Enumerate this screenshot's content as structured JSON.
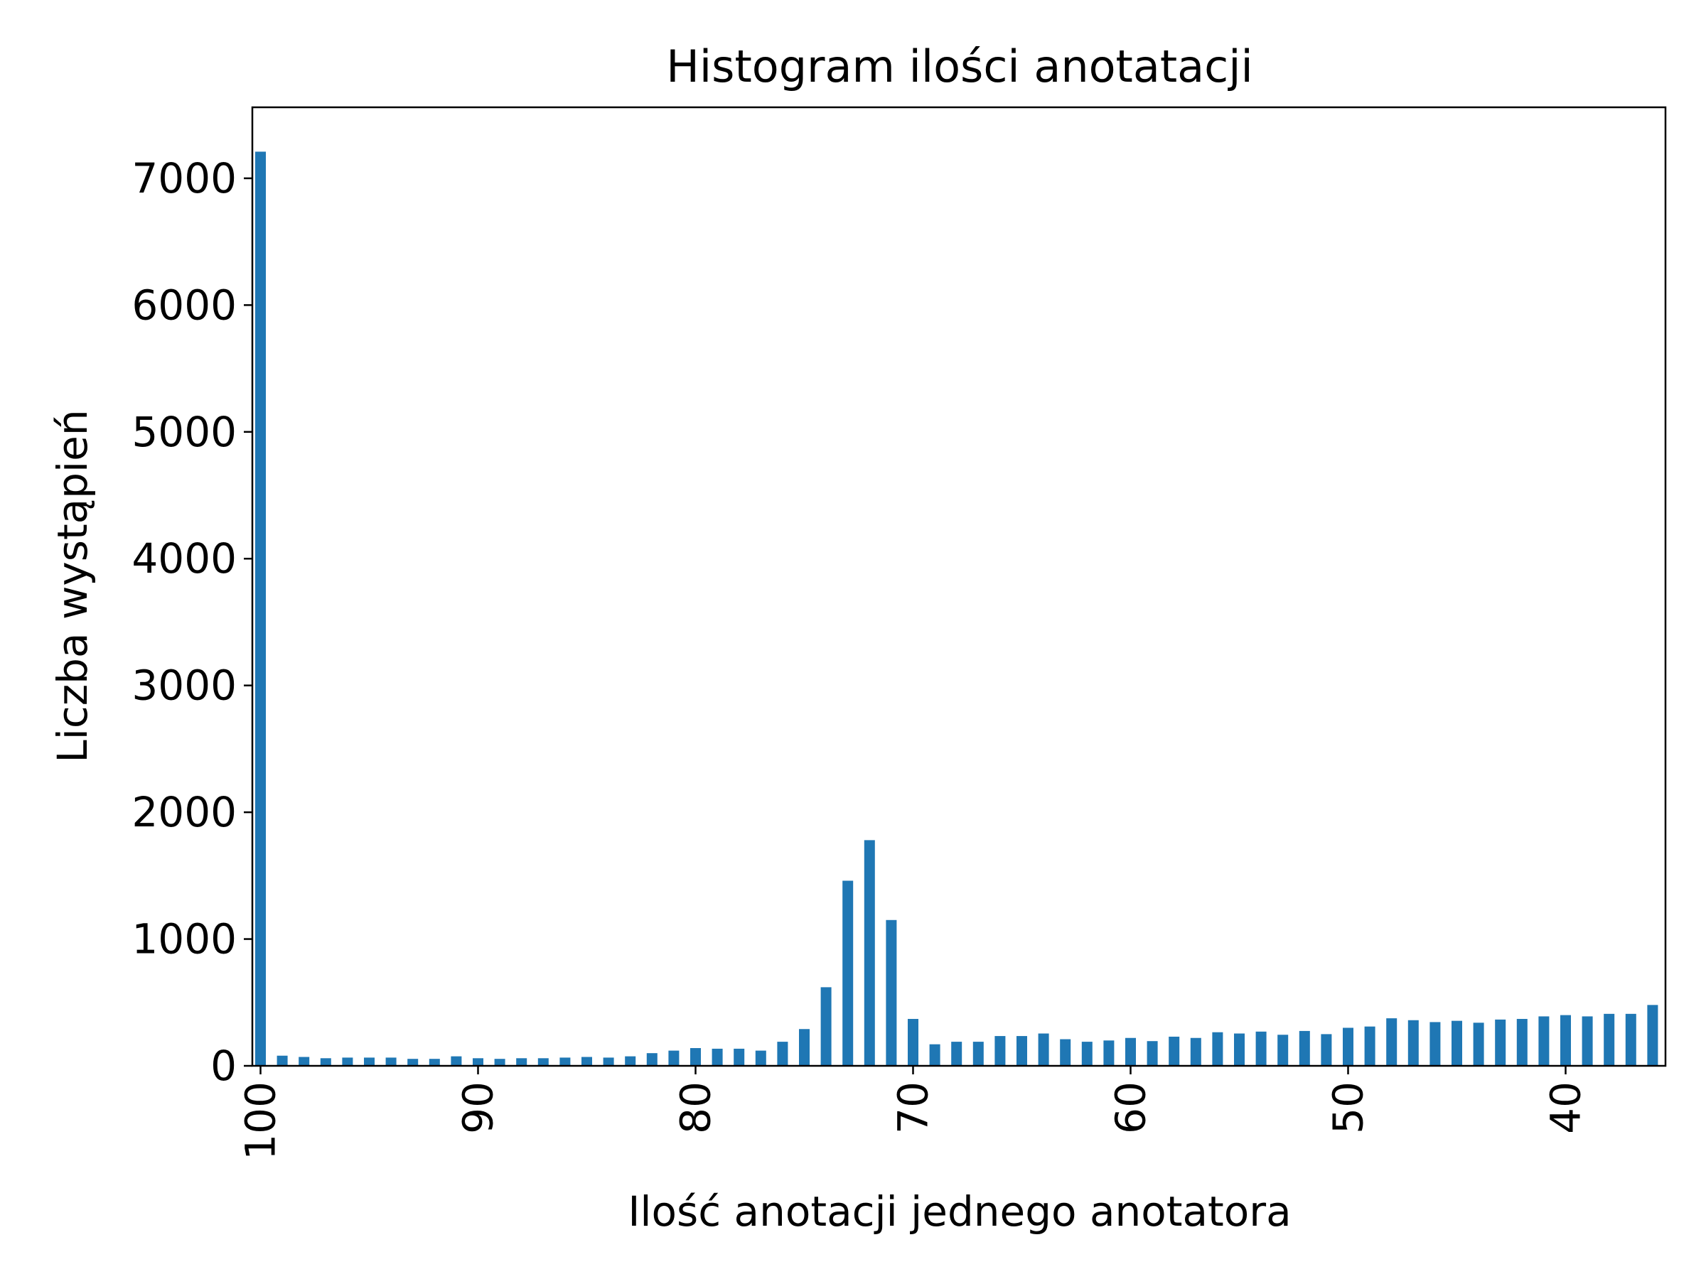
{
  "chart_data": {
    "type": "bar",
    "title": "Histogram ilości anotatacji",
    "xlabel": "Ilość anotacji jednego anotatora",
    "ylabel": "Liczba wystąpień",
    "x_order": "descending",
    "categories": [
      100,
      99,
      98,
      97,
      96,
      95,
      94,
      93,
      92,
      91,
      90,
      89,
      88,
      87,
      86,
      85,
      84,
      83,
      82,
      81,
      80,
      79,
      78,
      77,
      76,
      75,
      74,
      73,
      72,
      71,
      70,
      69,
      68,
      67,
      66,
      65,
      64,
      63,
      62,
      61,
      60,
      59,
      58,
      57,
      56,
      55,
      54,
      53,
      52,
      51,
      50,
      49,
      48,
      47,
      46,
      45,
      44,
      43,
      42,
      41,
      40,
      39,
      38,
      37,
      36
    ],
    "values": [
      7210,
      80,
      70,
      60,
      65,
      65,
      65,
      55,
      55,
      75,
      60,
      55,
      60,
      60,
      65,
      70,
      65,
      75,
      100,
      120,
      140,
      135,
      135,
      120,
      190,
      290,
      620,
      1460,
      1780,
      1150,
      370,
      170,
      190,
      190,
      235,
      235,
      255,
      210,
      190,
      200,
      220,
      195,
      230,
      220,
      265,
      255,
      270,
      245,
      275,
      250,
      300,
      310,
      375,
      360,
      345,
      355,
      340,
      365,
      370,
      390,
      400,
      390,
      410,
      410,
      480
    ],
    "x_tick_labels": [
      "100",
      "90",
      "80",
      "70",
      "60",
      "50",
      "40"
    ],
    "y_tick_labels": [
      "0",
      "1000",
      "2000",
      "3000",
      "4000",
      "5000",
      "6000",
      "7000"
    ],
    "ylim": [
      0,
      7560
    ],
    "grid": false,
    "legend": "none",
    "colors": {
      "bar": "#1f77b4",
      "axes": "#000000",
      "background": "#ffffff"
    }
  }
}
